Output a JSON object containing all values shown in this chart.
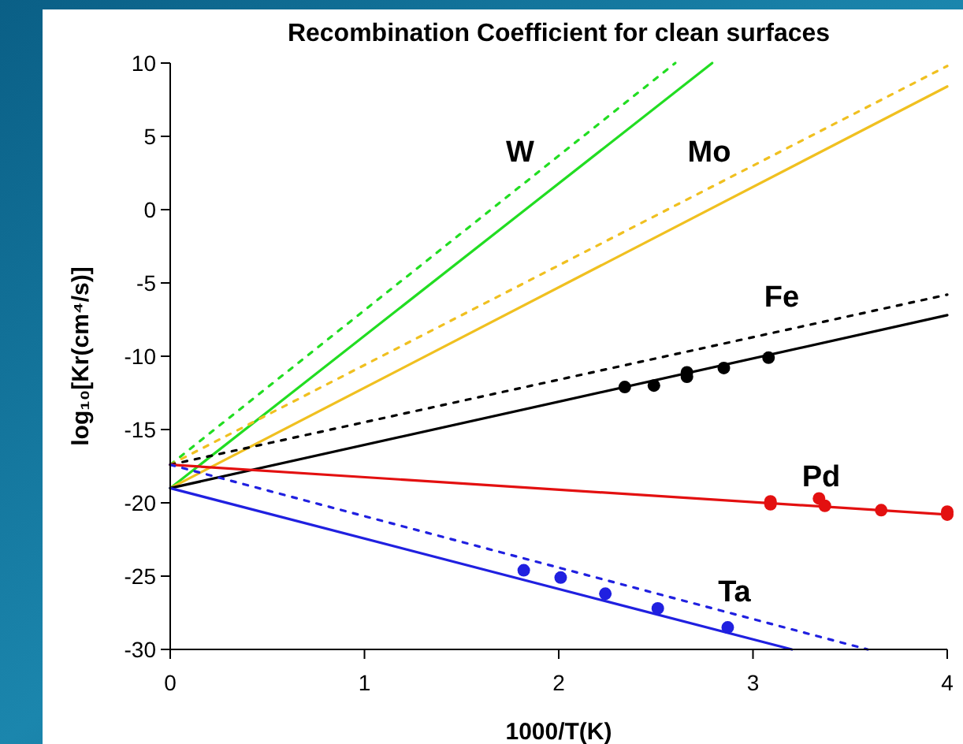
{
  "chart_data": {
    "type": "line",
    "title": "Recombination Coefficient for clean surfaces",
    "xlabel": "1000/T(K)",
    "ylabel": "log₁₀[Kr(cm⁴/s)]",
    "xlim": [
      0,
      4
    ],
    "ylim": [
      -30,
      10
    ],
    "xticks": [
      0,
      1,
      2,
      3,
      4
    ],
    "yticks": [
      -30,
      -25,
      -20,
      -15,
      -10,
      -5,
      0,
      5,
      10
    ],
    "grid": false,
    "legend": false,
    "series": [
      {
        "name": "W",
        "color": "#22dd22",
        "line_style": "solid",
        "x": [
          0,
          2.79
        ],
        "values": [
          -19,
          10
        ]
      },
      {
        "color": "#22dd22",
        "line_style": "dotted",
        "x": [
          0,
          2.6
        ],
        "values": [
          -17.4,
          10
        ]
      },
      {
        "name": "Mo",
        "color": "#f0c020",
        "line_style": "solid",
        "x": [
          0,
          4
        ],
        "values": [
          -19,
          8.4
        ]
      },
      {
        "color": "#f0c020",
        "line_style": "dotted",
        "x": [
          0,
          4
        ],
        "values": [
          -17.4,
          9.8
        ]
      },
      {
        "name": "Fe",
        "color": "#000000",
        "line_style": "solid",
        "x": [
          0,
          4
        ],
        "values": [
          -19,
          -7.2
        ]
      },
      {
        "color": "#000000",
        "line_style": "dotted",
        "x": [
          0,
          4
        ],
        "values": [
          -17.4,
          -5.8
        ]
      },
      {
        "type": "scatter",
        "color": "#000000",
        "marker": "circle",
        "x": [
          2.34,
          2.49,
          2.66,
          2.66,
          2.85,
          3.08
        ],
        "values": [
          -12.1,
          -12.0,
          -11.1,
          -11.4,
          -10.8,
          -10.1
        ]
      },
      {
        "name": "Pd",
        "color": "#e31010",
        "line_style": "solid",
        "x": [
          0,
          4
        ],
        "values": [
          -17.4,
          -20.8
        ]
      },
      {
        "type": "scatter",
        "color": "#e31010",
        "marker": "circle",
        "x": [
          3.09,
          3.09,
          3.34,
          3.37,
          3.66,
          4.0,
          4.0
        ],
        "values": [
          -19.9,
          -20.1,
          -19.7,
          -20.2,
          -20.5,
          -20.6,
          -20.8
        ]
      },
      {
        "name": "Ta",
        "color": "#2020e0",
        "line_style": "solid",
        "x": [
          0,
          3.2
        ],
        "values": [
          -19,
          -30
        ]
      },
      {
        "color": "#2020e0",
        "line_style": "dotted",
        "x": [
          0,
          3.59
        ],
        "values": [
          -17.4,
          -30
        ]
      },
      {
        "type": "scatter",
        "color": "#2020e0",
        "marker": "circle",
        "x": [
          1.82,
          2.01,
          2.24,
          2.51,
          2.87
        ],
        "values": [
          -24.6,
          -25.1,
          -26.2,
          -27.2,
          -28.5
        ]
      }
    ]
  }
}
